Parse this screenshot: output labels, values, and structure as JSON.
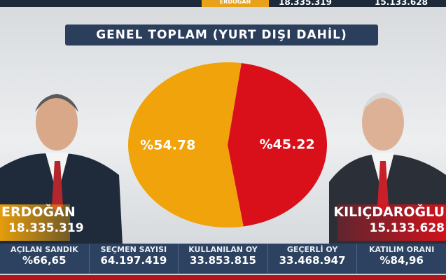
{
  "ticker": {
    "name": "ERDOĞAN",
    "erdogan_votes": "18.335.319",
    "kilicdaroglu_votes": "15.133.628"
  },
  "title": "GENEL TOPLAM (YURT DIŞI DAHİL)",
  "chart_data": {
    "type": "pie",
    "title": "GENEL TOPLAM (YURT DIŞI DAHİL)",
    "slices": [
      {
        "name": "ERDOĞAN",
        "value": 54.78,
        "label": "%54.78",
        "color": "#f0a30a"
      },
      {
        "name": "KILIÇDAROĞLU",
        "value": 45.22,
        "label": "%45.22",
        "color": "#d9101a"
      }
    ]
  },
  "candidates": [
    {
      "name": "ERDOĞAN",
      "votes": "18.335.319",
      "color": "#f0a30a"
    },
    {
      "name": "KILIÇDAROĞLU",
      "votes": "15.133.628",
      "color": "#d9101a"
    }
  ],
  "stats": [
    {
      "label": "AÇILAN SANDIK",
      "value": "%66,65"
    },
    {
      "label": "SEÇMEN SAYISI",
      "value": "64.197.419"
    },
    {
      "label": "KULLANILAN OY",
      "value": "33.853.815"
    },
    {
      "label": "GEÇERLİ OY",
      "value": "33.468.947"
    },
    {
      "label": "KATILIM ORANI",
      "value": "%84,96"
    }
  ]
}
